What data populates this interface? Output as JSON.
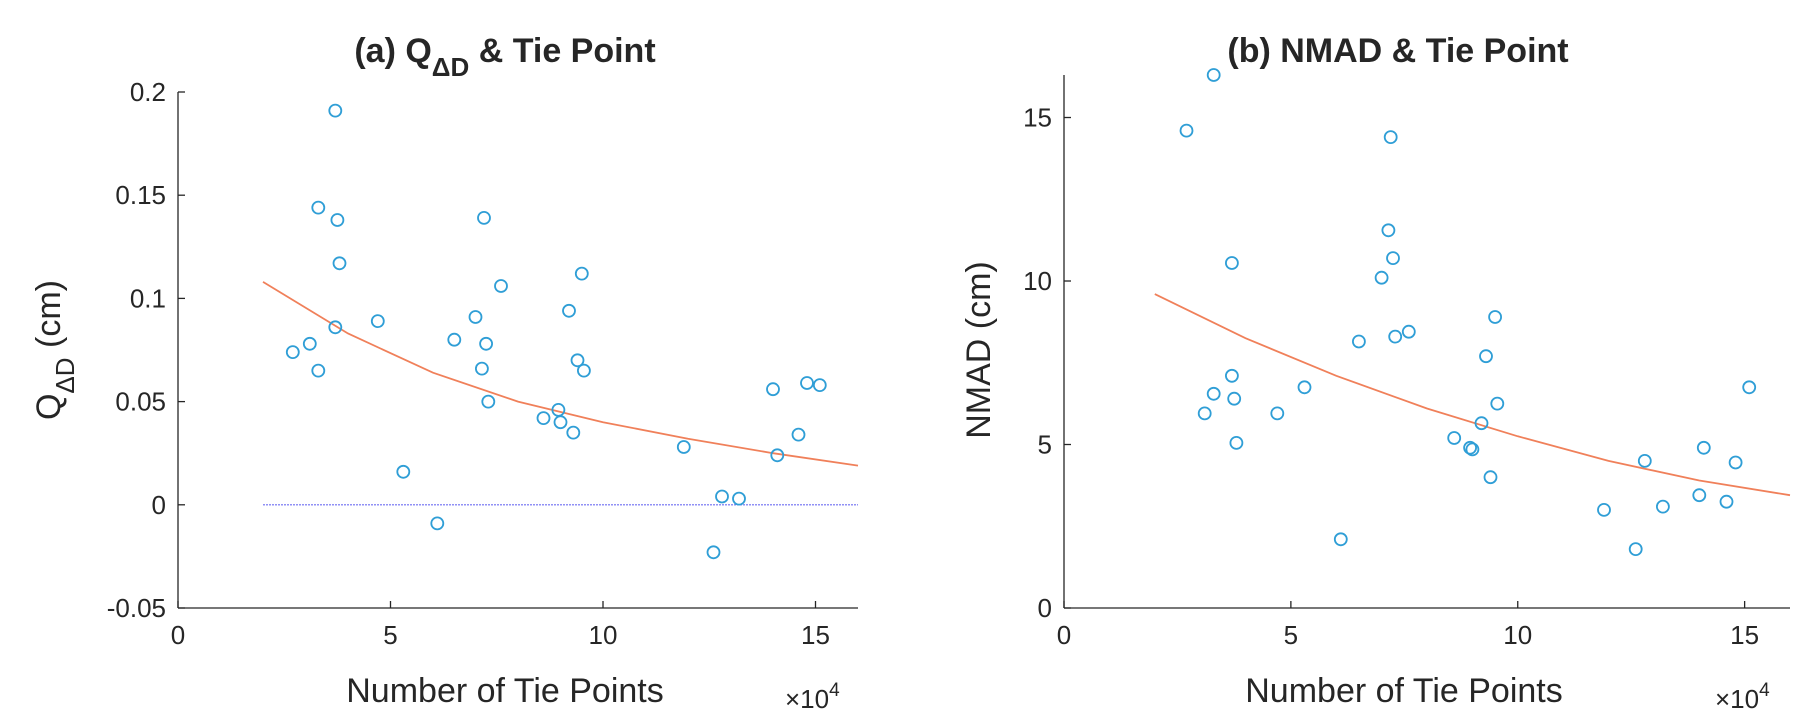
{
  "chart_data": [
    {
      "type": "scatter",
      "title_prefix": "(a) Q",
      "title_sub": "ΔD",
      "title_suffix": " & Tie Point",
      "xlabel": "Number of Tie Points",
      "ylabel_main": "Q",
      "ylabel_sub": "ΔD",
      "ylabel_unit": " (cm)",
      "x_exponent_base": "×10",
      "x_exponent_power": "4",
      "xlim": [
        0,
        16
      ],
      "ylim": [
        -0.05,
        0.2
      ],
      "xticks": [
        0,
        5,
        10,
        15
      ],
      "xtick_labels": [
        "0",
        "5",
        "10",
        "15"
      ],
      "yticks": [
        -0.05,
        0,
        0.05,
        0.1,
        0.15,
        0.2
      ],
      "ytick_labels": [
        "-0.05",
        "0",
        "0.05",
        "0.1",
        "0.15",
        "0.2"
      ],
      "series": [
        {
          "name": "data",
          "marker": "circle",
          "x": [
            2.7,
            3.1,
            3.3,
            3.3,
            3.7,
            3.7,
            3.75,
            3.8,
            4.7,
            5.3,
            6.1,
            6.5,
            7.0,
            7.15,
            7.2,
            7.25,
            7.3,
            7.6,
            8.6,
            8.95,
            9.0,
            9.2,
            9.3,
            9.4,
            9.5,
            9.55,
            11.9,
            12.6,
            12.8,
            13.2,
            14.0,
            14.1,
            14.6,
            14.8,
            15.1
          ],
          "y": [
            0.074,
            0.078,
            0.144,
            0.065,
            0.191,
            0.086,
            0.138,
            0.117,
            0.089,
            0.016,
            -0.009,
            0.08,
            0.091,
            0.066,
            0.139,
            0.078,
            0.05,
            0.106,
            0.042,
            0.046,
            0.04,
            0.094,
            0.035,
            0.07,
            0.112,
            0.065,
            0.028,
            -0.023,
            0.004,
            0.003,
            0.056,
            0.024,
            0.034,
            0.059,
            0.058
          ]
        },
        {
          "name": "fit",
          "line": "curve",
          "color": "#f0805a",
          "x": [
            2,
            4,
            6,
            8,
            10,
            12,
            14,
            16
          ],
          "y": [
            0.108,
            0.083,
            0.064,
            0.05,
            0.04,
            0.032,
            0.025,
            0.019
          ]
        },
        {
          "name": "zero",
          "line": "flat",
          "color": "#6d6df2",
          "x": [
            2,
            16
          ],
          "y": [
            0,
            0
          ]
        }
      ]
    },
    {
      "type": "scatter",
      "title": "(b) NMAD & Tie Point",
      "xlabel": "Number of Tie Points",
      "ylabel": "NMAD (cm)",
      "x_exponent_base": "×10",
      "x_exponent_power": "4",
      "xlim": [
        0,
        16
      ],
      "ylim": [
        0,
        16.3
      ],
      "xticks": [
        0,
        5,
        10,
        15
      ],
      "xtick_labels": [
        "0",
        "5",
        "10",
        "15"
      ],
      "yticks": [
        0,
        5,
        10,
        15
      ],
      "ytick_labels": [
        "0",
        "5",
        "10",
        "15"
      ],
      "series": [
        {
          "name": "data",
          "marker": "circle",
          "x": [
            2.7,
            3.1,
            3.3,
            3.3,
            3.7,
            3.7,
            3.75,
            3.8,
            4.7,
            5.3,
            6.1,
            6.5,
            7.0,
            7.15,
            7.2,
            7.25,
            7.3,
            7.6,
            8.6,
            8.95,
            9.0,
            9.2,
            9.3,
            9.4,
            9.5,
            9.55,
            11.9,
            12.6,
            12.8,
            13.2,
            14.0,
            14.1,
            14.6,
            14.8,
            15.1
          ],
          "y": [
            14.6,
            5.95,
            16.3,
            6.55,
            10.55,
            7.1,
            6.4,
            5.05,
            5.95,
            6.75,
            2.1,
            8.15,
            10.1,
            11.55,
            14.4,
            10.7,
            8.3,
            8.45,
            5.2,
            4.9,
            4.85,
            5.65,
            7.7,
            4.0,
            8.9,
            6.25,
            3.0,
            1.8,
            4.5,
            3.1,
            3.45,
            4.9,
            3.25,
            4.45,
            6.75
          ]
        },
        {
          "name": "fit",
          "line": "curve",
          "color": "#f0805a",
          "x": [
            2,
            4,
            6,
            8,
            10,
            12,
            14,
            16
          ],
          "y": [
            9.6,
            8.25,
            7.1,
            6.1,
            5.25,
            4.5,
            3.9,
            3.45
          ]
        }
      ]
    }
  ]
}
